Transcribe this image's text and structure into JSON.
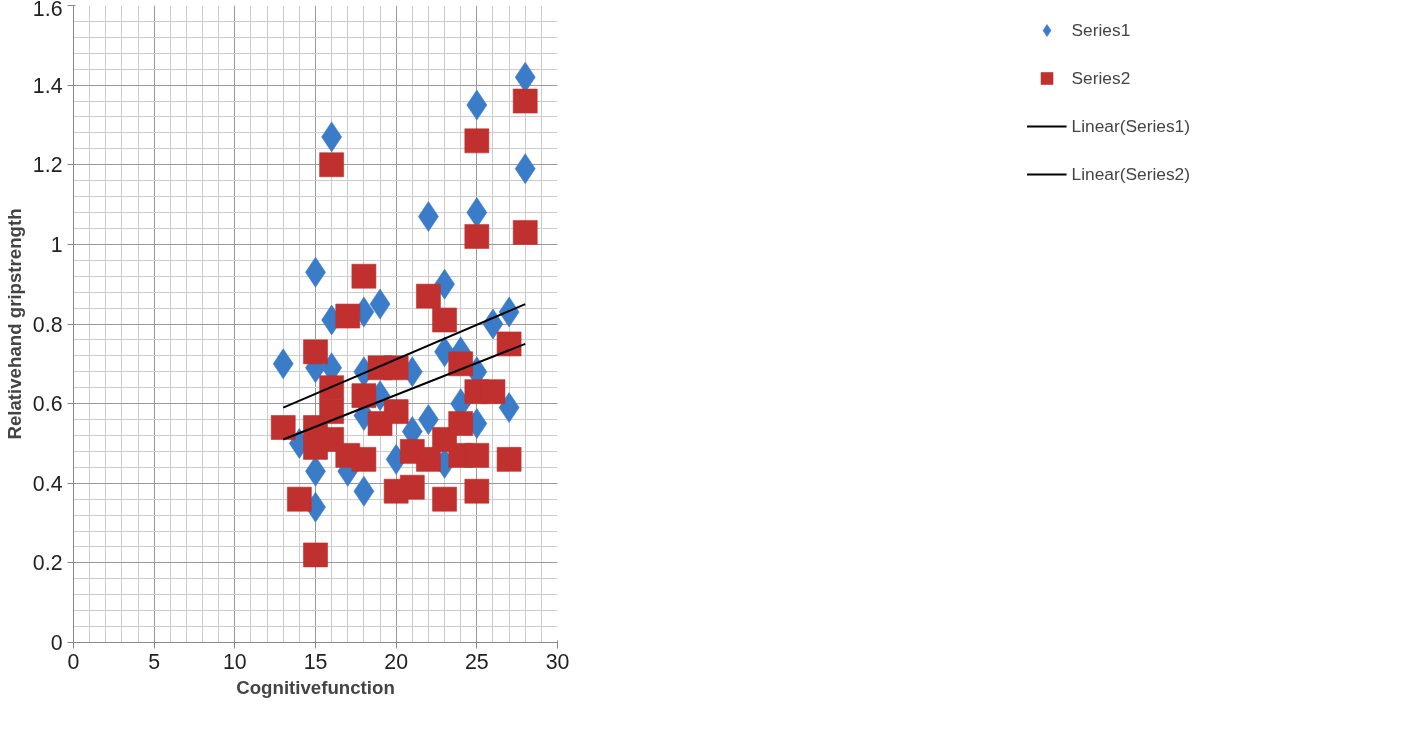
{
  "chart_data": {
    "type": "scatter",
    "xlabel": "Cognitivefunction",
    "ylabel": "Relativehand gripstrength",
    "xlim": [
      0,
      30
    ],
    "xticks": [
      0,
      5,
      10,
      15,
      20,
      25,
      30
    ],
    "ylim": [
      0,
      1.6
    ],
    "yticks": [
      0,
      0.2,
      0.4,
      0.6,
      0.8,
      1,
      1.2,
      1.4,
      1.6
    ],
    "grid": true,
    "legend": "right",
    "series": [
      {
        "name": "Series1",
        "color": "#3a7cc8",
        "marker": "diamond",
        "x": [
          13,
          14,
          15,
          15,
          15,
          15,
          16,
          16,
          16,
          17,
          18,
          18,
          18,
          18,
          19,
          19,
          20,
          21,
          21,
          22,
          22,
          23,
          23,
          23,
          24,
          24,
          25,
          25,
          25,
          25,
          26,
          27,
          27,
          28,
          28
        ],
        "values": [
          0.7,
          0.5,
          0.93,
          0.69,
          0.43,
          0.34,
          1.27,
          0.81,
          0.69,
          0.43,
          0.83,
          0.68,
          0.57,
          0.38,
          0.85,
          0.62,
          0.46,
          0.68,
          0.53,
          1.07,
          0.56,
          0.9,
          0.73,
          0.45,
          0.73,
          0.6,
          1.35,
          1.08,
          0.68,
          0.55,
          0.8,
          0.83,
          0.59,
          1.42,
          1.19
        ]
      },
      {
        "name": "Series2",
        "color": "#c0302e",
        "marker": "square",
        "x": [
          13,
          14,
          15,
          15,
          15,
          15,
          16,
          16,
          16,
          16,
          17,
          17,
          18,
          18,
          18,
          19,
          19,
          20,
          20,
          20,
          21,
          21,
          22,
          22,
          23,
          23,
          23,
          24,
          24,
          24,
          25,
          25,
          25,
          25,
          25,
          26,
          27,
          27,
          28,
          28
        ],
        "values": [
          0.54,
          0.36,
          0.73,
          0.54,
          0.49,
          0.22,
          1.2,
          0.64,
          0.58,
          0.51,
          0.82,
          0.47,
          0.92,
          0.62,
          0.46,
          0.69,
          0.55,
          0.69,
          0.58,
          0.38,
          0.48,
          0.39,
          0.87,
          0.46,
          0.81,
          0.51,
          0.36,
          0.7,
          0.55,
          0.47,
          1.26,
          1.02,
          0.63,
          0.47,
          0.38,
          0.63,
          0.75,
          0.46,
          1.36,
          1.03
        ]
      },
      {
        "name": "Linear(Series1)",
        "type": "line",
        "color": "#000000",
        "x": [
          13,
          28
        ],
        "values": [
          0.59,
          0.85
        ]
      },
      {
        "name": "Linear(Series2)",
        "type": "line",
        "color": "#000000",
        "x": [
          13,
          28
        ],
        "values": [
          0.51,
          0.75
        ]
      }
    ]
  }
}
